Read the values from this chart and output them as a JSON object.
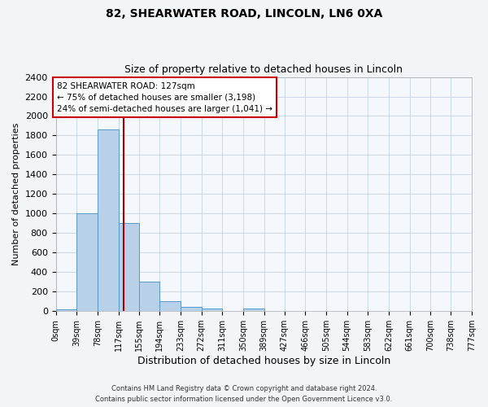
{
  "title1": "82, SHEARWATER ROAD, LINCOLN, LN6 0XA",
  "title2": "Size of property relative to detached houses in Lincoln",
  "xlabel": "Distribution of detached houses by size in Lincoln",
  "ylabel": "Number of detached properties",
  "bin_edges": [
    0,
    39,
    78,
    117,
    155,
    194,
    233,
    272,
    311,
    350,
    389,
    427,
    466,
    505,
    544,
    583,
    622,
    661,
    700,
    738,
    777
  ],
  "bin_labels": [
    "0sqm",
    "39sqm",
    "78sqm",
    "117sqm",
    "155sqm",
    "194sqm",
    "233sqm",
    "272sqm",
    "311sqm",
    "350sqm",
    "389sqm",
    "427sqm",
    "466sqm",
    "505sqm",
    "544sqm",
    "583sqm",
    "622sqm",
    "661sqm",
    "700sqm",
    "738sqm",
    "777sqm"
  ],
  "bar_heights": [
    20,
    1000,
    1860,
    900,
    300,
    100,
    40,
    30,
    0,
    25,
    0,
    0,
    0,
    0,
    0,
    0,
    0,
    0,
    0,
    0
  ],
  "bar_color": "#b8d0e8",
  "bar_edge_color": "#5599cc",
  "grid_color": "#c8d8ea",
  "vline_x": 127,
  "vline_color": "#aa0000",
  "annotation_text": "82 SHEARWATER ROAD: 127sqm\n← 75% of detached houses are smaller (3,198)\n24% of semi-detached houses are larger (1,041) →",
  "annotation_box_color": "#ffffff",
  "annotation_box_edge": "#cc0000",
  "ylim": [
    0,
    2400
  ],
  "yticks": [
    0,
    200,
    400,
    600,
    800,
    1000,
    1200,
    1400,
    1600,
    1800,
    2000,
    2200,
    2400
  ],
  "footer1": "Contains HM Land Registry data © Crown copyright and database right 2024.",
  "footer2": "Contains public sector information licensed under the Open Government Licence v3.0.",
  "bg_color": "#f2f5f8",
  "plot_bg_color": "#f4f7fb"
}
